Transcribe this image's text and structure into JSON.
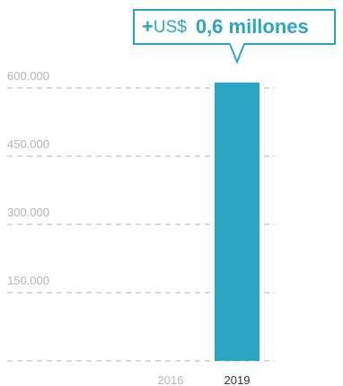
{
  "chart_data": {
    "type": "bar",
    "categories": [
      "2016",
      "2019"
    ],
    "values": [
      0,
      612000
    ],
    "ylim": [
      0,
      600000
    ],
    "y_ticks": [
      {
        "value": 150000,
        "label": "150.000"
      },
      {
        "value": 300000,
        "label": "300.000"
      },
      {
        "value": 450000,
        "label": "450.000"
      },
      {
        "value": 600000,
        "label": "600.000"
      }
    ],
    "grid": true,
    "callout": {
      "plus": "+",
      "currency": "US$",
      "value": "0,6 millones",
      "category": "2019"
    },
    "colors": {
      "bar": "#2aa6c4",
      "accent": "#2aa6c4",
      "grid": "#b5b5b5",
      "tick_text": "#b5b5b5",
      "category_muted": "#b5b5b5",
      "category_active": "#333333"
    }
  }
}
